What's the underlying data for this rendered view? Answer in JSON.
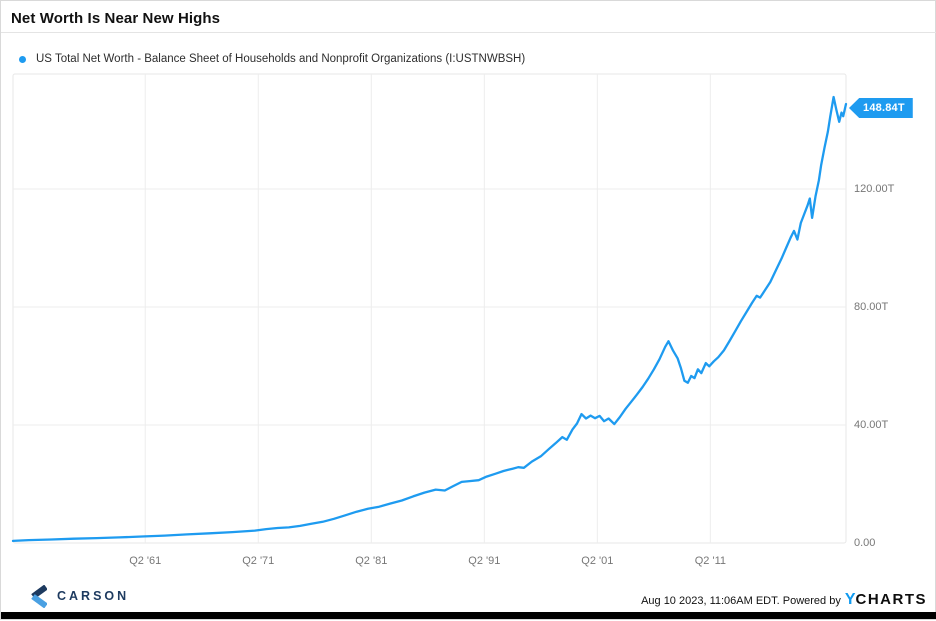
{
  "header": {
    "title": "Net Worth Is Near New Highs"
  },
  "legend": {
    "series_label": "US Total Net Worth - Balance Sheet of Households and Nonprofit Organizations (I:USTNWBSH)"
  },
  "chart_data": {
    "type": "line",
    "title": "Net Worth Is Near New Highs",
    "unit": "USD trillions",
    "x_range": [
      1949.6,
      2023.3
    ],
    "y_range": [
      0,
      159
    ],
    "grid": true,
    "legend_position": "top-left",
    "last_value_label": "148.84T",
    "x_ticks": [
      {
        "label": "Q2 '61",
        "year": 1961.3
      },
      {
        "label": "Q2 '71",
        "year": 1971.3
      },
      {
        "label": "Q2 '81",
        "year": 1981.3
      },
      {
        "label": "Q2 '91",
        "year": 1991.3
      },
      {
        "label": "Q2 '01",
        "year": 2001.3
      },
      {
        "label": "Q2 '11",
        "year": 2011.3
      }
    ],
    "y_ticks": [
      {
        "label": "0.00",
        "value": 0
      },
      {
        "label": "40.00T",
        "value": 40
      },
      {
        "label": "80.00T",
        "value": 80
      },
      {
        "label": "120.00T",
        "value": 120
      }
    ],
    "series": [
      {
        "name": "US Total Net Worth - Balance Sheet of Households and Nonprofit Organizations (I:USTNWBSH)",
        "color": "#1e9bf0",
        "points": [
          [
            1949.6,
            0.7
          ],
          [
            1951,
            1.0
          ],
          [
            1953,
            1.2
          ],
          [
            1955,
            1.45
          ],
          [
            1957,
            1.65
          ],
          [
            1959,
            1.9
          ],
          [
            1961,
            2.2
          ],
          [
            1963,
            2.5
          ],
          [
            1965,
            2.9
          ],
          [
            1967,
            3.3
          ],
          [
            1969,
            3.7
          ],
          [
            1971,
            4.2
          ],
          [
            1972,
            4.7
          ],
          [
            1973,
            5.1
          ],
          [
            1974,
            5.3
          ],
          [
            1975,
            5.8
          ],
          [
            1976,
            6.5
          ],
          [
            1977,
            7.2
          ],
          [
            1978,
            8.2
          ],
          [
            1979,
            9.4
          ],
          [
            1980,
            10.6
          ],
          [
            1981,
            11.6
          ],
          [
            1982,
            12.3
          ],
          [
            1983,
            13.4
          ],
          [
            1984,
            14.4
          ],
          [
            1985,
            15.8
          ],
          [
            1986,
            17.1
          ],
          [
            1987,
            18.1
          ],
          [
            1987.8,
            17.8
          ],
          [
            1988.5,
            19.2
          ],
          [
            1989.3,
            20.7
          ],
          [
            1990,
            21.0
          ],
          [
            1990.8,
            21.3
          ],
          [
            1991.5,
            22.5
          ],
          [
            1992.3,
            23.5
          ],
          [
            1993,
            24.4
          ],
          [
            1993.8,
            25.2
          ],
          [
            1994.3,
            25.7
          ],
          [
            1994.8,
            25.5
          ],
          [
            1995.5,
            27.6
          ],
          [
            1996.3,
            29.4
          ],
          [
            1997,
            31.8
          ],
          [
            1997.6,
            33.8
          ],
          [
            1998.2,
            35.9
          ],
          [
            1998.6,
            35.0
          ],
          [
            1999.1,
            38.5
          ],
          [
            1999.5,
            40.5
          ],
          [
            1999.9,
            43.7
          ],
          [
            2000.3,
            42.2
          ],
          [
            2000.7,
            43.2
          ],
          [
            2001.1,
            42.3
          ],
          [
            2001.5,
            43.1
          ],
          [
            2001.9,
            41.3
          ],
          [
            2002.3,
            42.2
          ],
          [
            2002.8,
            40.3
          ],
          [
            2003.3,
            42.7
          ],
          [
            2003.8,
            45.5
          ],
          [
            2004.3,
            47.9
          ],
          [
            2004.8,
            50.3
          ],
          [
            2005.3,
            52.9
          ],
          [
            2005.8,
            55.7
          ],
          [
            2006.3,
            58.9
          ],
          [
            2006.8,
            62.3
          ],
          [
            2007.3,
            66.5
          ],
          [
            2007.6,
            68.4
          ],
          [
            2008.0,
            65.2
          ],
          [
            2008.4,
            62.6
          ],
          [
            2008.7,
            59.2
          ],
          [
            2009.0,
            55.0
          ],
          [
            2009.3,
            54.3
          ],
          [
            2009.6,
            56.6
          ],
          [
            2009.9,
            55.9
          ],
          [
            2010.2,
            58.9
          ],
          [
            2010.5,
            57.6
          ],
          [
            2010.9,
            61.0
          ],
          [
            2011.2,
            59.9
          ],
          [
            2011.6,
            61.6
          ],
          [
            2012.0,
            63.0
          ],
          [
            2012.5,
            65.3
          ],
          [
            2013.0,
            68.5
          ],
          [
            2013.5,
            71.8
          ],
          [
            2014.0,
            75.2
          ],
          [
            2014.5,
            78.3
          ],
          [
            2015.0,
            81.5
          ],
          [
            2015.4,
            83.8
          ],
          [
            2015.7,
            83.2
          ],
          [
            2016.1,
            85.5
          ],
          [
            2016.6,
            88.5
          ],
          [
            2017.1,
            92.5
          ],
          [
            2017.6,
            96.5
          ],
          [
            2018.0,
            100.0
          ],
          [
            2018.4,
            103.5
          ],
          [
            2018.7,
            105.8
          ],
          [
            2019.0,
            102.9
          ],
          [
            2019.3,
            108.5
          ],
          [
            2019.6,
            111.5
          ],
          [
            2019.9,
            114.5
          ],
          [
            2020.1,
            116.8
          ],
          [
            2020.3,
            110.2
          ],
          [
            2020.6,
            117.5
          ],
          [
            2020.9,
            123.0
          ],
          [
            2021.1,
            128.0
          ],
          [
            2021.4,
            134.0
          ],
          [
            2021.7,
            139.5
          ],
          [
            2021.9,
            144.5
          ],
          [
            2022.2,
            151.2
          ],
          [
            2022.45,
            146.8
          ],
          [
            2022.7,
            142.8
          ],
          [
            2022.9,
            145.9
          ],
          [
            2023.05,
            144.7
          ],
          [
            2023.3,
            148.84
          ]
        ]
      }
    ],
    "colors": {
      "line": "#1e9bf0",
      "grid": "#ededed",
      "plot_border": "#e7e7e7",
      "tick_text": "#777777"
    }
  },
  "footer": {
    "brand": "CARSON",
    "timestamp": "Aug 10 2023, 11:06AM EDT.",
    "powered_by": "Powered by",
    "ycharts_y": "Y",
    "ycharts_rest": "CHARTS"
  }
}
